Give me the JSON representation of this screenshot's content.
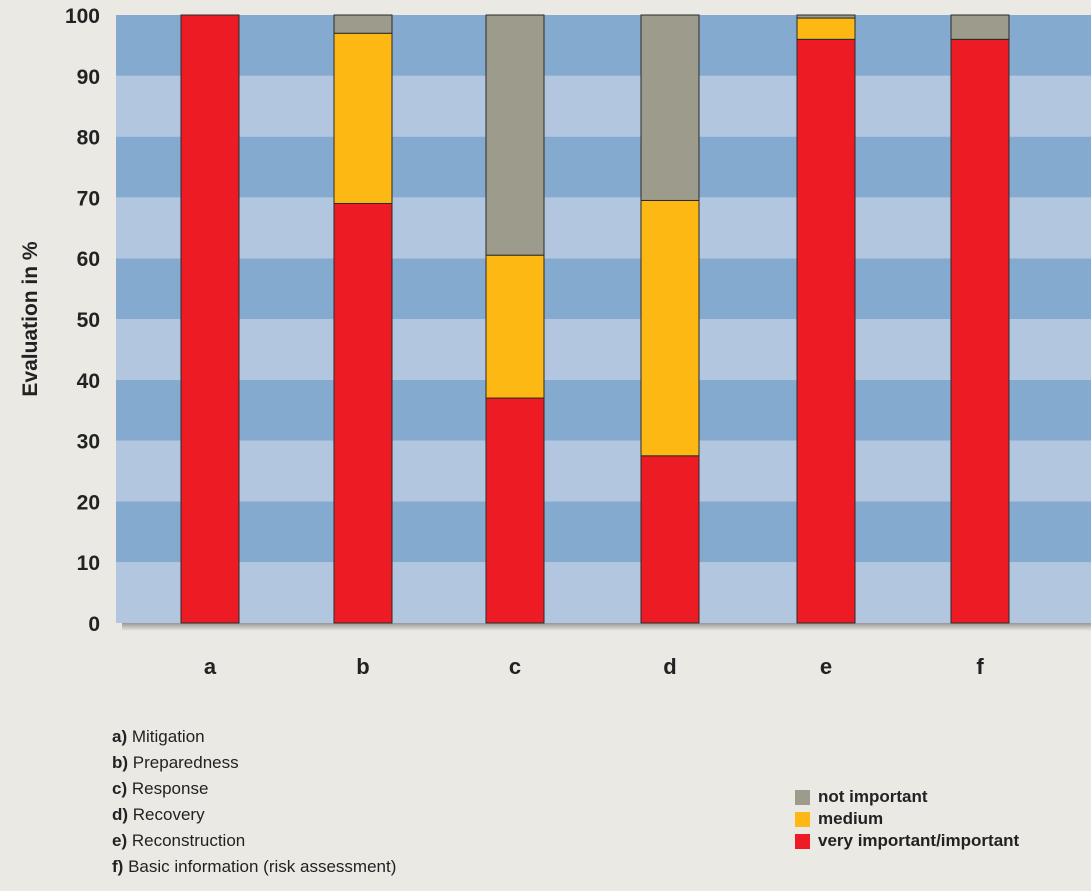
{
  "colors": {
    "band_dark": "#85aacf",
    "band_light": "#b2c7df",
    "not_important": "#9d9c8c",
    "medium": "#fdb813",
    "very_important": "#ed1c24"
  },
  "chart_data": {
    "type": "bar",
    "stacked": true,
    "categories": [
      "a",
      "b",
      "c",
      "d",
      "e",
      "f"
    ],
    "series": [
      {
        "name": "very important/important",
        "color_key": "very_important",
        "values": [
          100,
          69,
          37,
          27.5,
          96,
          96
        ]
      },
      {
        "name": "medium",
        "color_key": "medium",
        "values": [
          0,
          28,
          23.5,
          42,
          3.5,
          0
        ]
      },
      {
        "name": "not important",
        "color_key": "not_important",
        "values": [
          0,
          3,
          39.5,
          30.5,
          0.5,
          4
        ]
      }
    ],
    "ylabel": "Evaluation in %",
    "ylim": [
      0,
      100
    ],
    "yticks": [
      "0",
      "10",
      "20",
      "30",
      "40",
      "50",
      "60",
      "70",
      "80",
      "90",
      "100"
    ],
    "background": "alternating horizontal bands",
    "legend_position": "bottom-right"
  },
  "category_notes": [
    {
      "key": "a)",
      "text": "Mitigation"
    },
    {
      "key": "b)",
      "text": "Preparedness"
    },
    {
      "key": "c)",
      "text": "Response"
    },
    {
      "key": "d)",
      "text": "Recovery"
    },
    {
      "key": "e)",
      "text": "Reconstruction"
    },
    {
      "key": "f)",
      "text": "Basic information (risk assessment)"
    }
  ],
  "legend": [
    {
      "label": "not important",
      "color_key": "not_important"
    },
    {
      "label": "medium",
      "color_key": "medium"
    },
    {
      "label": "very important/important",
      "color_key": "very_important"
    }
  ]
}
